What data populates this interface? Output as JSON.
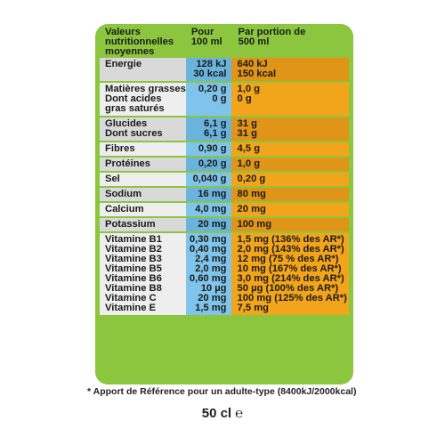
{
  "header": {
    "name": "Valeurs\nnutritionnelles\nmoyennes",
    "per100": "Pour\n100 ml",
    "perPortion": "Par portion de\n500 ml"
  },
  "rows": [
    {
      "name": "Energie",
      "per100": "128 kJ\n30 kcal",
      "portion": "640 kJ\n150 kcal",
      "alt": true
    },
    {
      "name": "Matières grasses\nDont acides\ngras saturés",
      "per100": "0,20 g\n0 g",
      "portion": "1,0 g\n0 g",
      "alt": false
    },
    {
      "name": "Glucides\nDont sucres",
      "per100": "6,1 g\n6,1 g",
      "portion": "31 g\n31 g",
      "alt": true
    },
    {
      "name": "Fibres",
      "per100": "0,90 g",
      "portion": "4,5 g",
      "alt": false
    },
    {
      "name": "Protéines",
      "per100": "0,20 g",
      "portion": "1,0 g",
      "alt": true
    },
    {
      "name": "Sel",
      "per100": "0,040 g",
      "portion": "0,20 g",
      "alt": false
    },
    {
      "name": "Sodium",
      "per100": "16 mg",
      "portion": "80 mg",
      "alt": true
    },
    {
      "name": "Calcium",
      "per100": "4,0 mg",
      "portion": "20 mg",
      "alt": false
    },
    {
      "name": "Potassium",
      "per100": "20 mg",
      "portion": "100 mg",
      "alt": true
    },
    {
      "name": "Vitamine B1\nVitamine B2\nVitamine B3\nVitamine B5\nVitamine B6\nVitamine B8\nVitamine C\nVitamine E",
      "per100": "0,30 mg\n0,40 mg\n2,4 mg\n2,0 mg\n0,60 mg\n10 µg\n20 mg\n1,5 mg",
      "portion": "1,5 mg (136% des AR*)\n2,0 mg (143% des AR*)\n12 mg (75 % des AR*)\n10 mg (167% des AR*)\n3,0 mg (214% des AR*)\n50 µg (100% des AR*)\n100 mg (125% des AR*)\n7,5 mg",
      "alt": false
    }
  ],
  "footnote": "* Apport de Référence pour un adulte-type (8400kJ/2000kcal)",
  "volume": "50 cl ℮",
  "colors": {
    "panel": "#8cc63f",
    "nameCol": "#eeeeee",
    "per100Col": "#7fc4ea",
    "portionCol": "#f2a51b"
  }
}
